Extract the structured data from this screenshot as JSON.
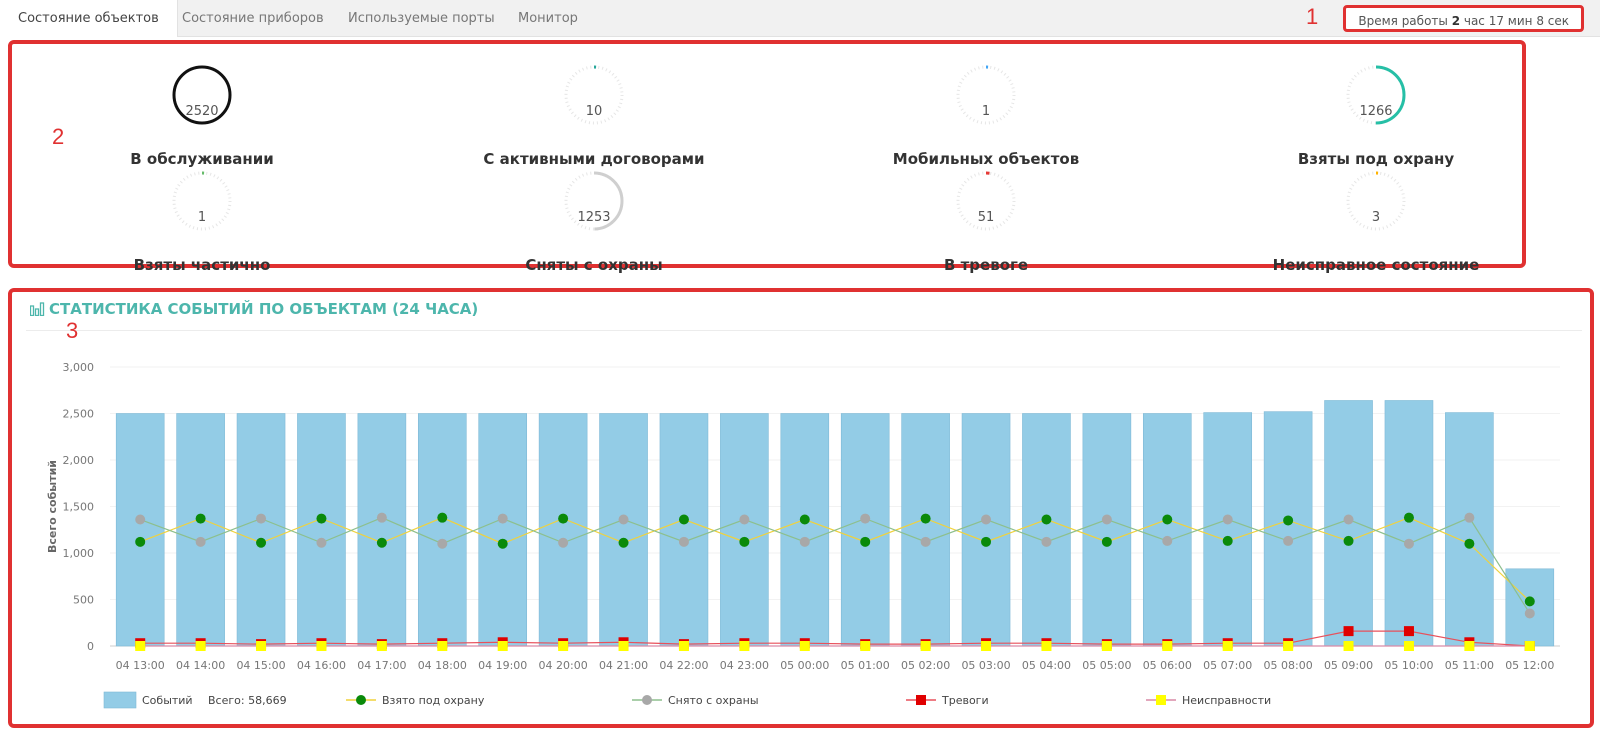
{
  "tabs": [
    {
      "label": "Состояние объектов",
      "active": true
    },
    {
      "label": "Состояние приборов",
      "active": false
    },
    {
      "label": "Используемые порты",
      "active": false
    },
    {
      "label": "Монитор",
      "active": false
    }
  ],
  "uptime": {
    "prefix": "Время работы ",
    "hours": "2",
    "rest": " час 17 мин 8 сек"
  },
  "annotations": {
    "one": "1",
    "two": "2",
    "three": "3"
  },
  "gauges": [
    {
      "value": "2520",
      "label": "В обслуживании",
      "fraction": 1.0,
      "color": "#111111"
    },
    {
      "value": "10",
      "label": "С активными договорами",
      "fraction": 0.004,
      "color": "#26a69a"
    },
    {
      "value": "1",
      "label": "Мобильных объектов",
      "fraction": 0.0005,
      "color": "#42a5f5"
    },
    {
      "value": "1266",
      "label": "Взяты под охрану",
      "fraction": 0.5,
      "color": "#26bfa6"
    },
    {
      "value": "1",
      "label": "Взяты частично",
      "fraction": 0.0005,
      "color": "#66bb6a"
    },
    {
      "value": "1253",
      "label": "Сняты с охраны",
      "fraction": 0.497,
      "color": "#cfcfcf"
    },
    {
      "value": "51",
      "label": "В тревоге",
      "fraction": 0.02,
      "color": "#e53935"
    },
    {
      "value": "3",
      "label": "Неисправное состояние",
      "fraction": 0.0012,
      "color": "#ffb300"
    }
  ],
  "chart_title": "СТАТИСТИКА СОБЫТИЙ ПО ОБЪЕКТАМ (24 ЧАСА)",
  "chart_data": {
    "type": "bar",
    "ylabel": "Всего событий",
    "ylim": [
      0,
      3000
    ],
    "yticks": [
      "0",
      "500",
      "1,000",
      "1,500",
      "2,000",
      "2,500",
      "3,000"
    ],
    "categories": [
      "04 13:00",
      "04 14:00",
      "04 15:00",
      "04 16:00",
      "04 17:00",
      "04 18:00",
      "04 19:00",
      "04 20:00",
      "04 21:00",
      "04 22:00",
      "04 23:00",
      "05 00:00",
      "05 01:00",
      "05 02:00",
      "05 03:00",
      "05 04:00",
      "05 05:00",
      "05 06:00",
      "05 07:00",
      "05 08:00",
      "05 09:00",
      "05 10:00",
      "05 11:00",
      "05 12:00"
    ],
    "bars": {
      "name": "Событий",
      "total_label": "Всего: 58,669",
      "color": "#93cce6",
      "values": [
        2500,
        2500,
        2500,
        2500,
        2500,
        2500,
        2500,
        2500,
        2500,
        2500,
        2500,
        2500,
        2500,
        2500,
        2500,
        2500,
        2500,
        2500,
        2510,
        2520,
        2640,
        2640,
        2510,
        830
      ]
    },
    "series": [
      {
        "name": "Взято под охрану",
        "line_color": "#f0d23c",
        "marker_color": "#0a8a0a",
        "marker": "circle",
        "values": [
          1120,
          1370,
          1110,
          1370,
          1110,
          1380,
          1100,
          1370,
          1110,
          1360,
          1120,
          1360,
          1120,
          1370,
          1120,
          1360,
          1120,
          1360,
          1130,
          1350,
          1130,
          1380,
          1100,
          480
        ]
      },
      {
        "name": "Снято с охраны",
        "line_color": "#8dbf8d",
        "marker_color": "#a8a8a8",
        "marker": "circle",
        "values": [
          1360,
          1120,
          1370,
          1110,
          1380,
          1100,
          1370,
          1110,
          1360,
          1120,
          1360,
          1120,
          1370,
          1120,
          1360,
          1120,
          1360,
          1130,
          1360,
          1130,
          1360,
          1100,
          1380,
          350
        ]
      },
      {
        "name": "Тревоги",
        "line_color": "#e8505b",
        "marker_color": "#e00000",
        "marker": "square",
        "values": [
          30,
          30,
          20,
          30,
          20,
          30,
          40,
          30,
          40,
          20,
          30,
          30,
          20,
          20,
          30,
          30,
          20,
          20,
          30,
          30,
          160,
          160,
          40,
          0
        ]
      },
      {
        "name": "Неисправности",
        "line_color": "#d98aa6",
        "marker_color": "#ffff00",
        "marker": "square",
        "values": [
          0,
          0,
          0,
          0,
          0,
          0,
          0,
          0,
          0,
          0,
          0,
          0,
          0,
          0,
          0,
          0,
          0,
          0,
          0,
          0,
          0,
          0,
          0,
          0
        ]
      }
    ]
  }
}
